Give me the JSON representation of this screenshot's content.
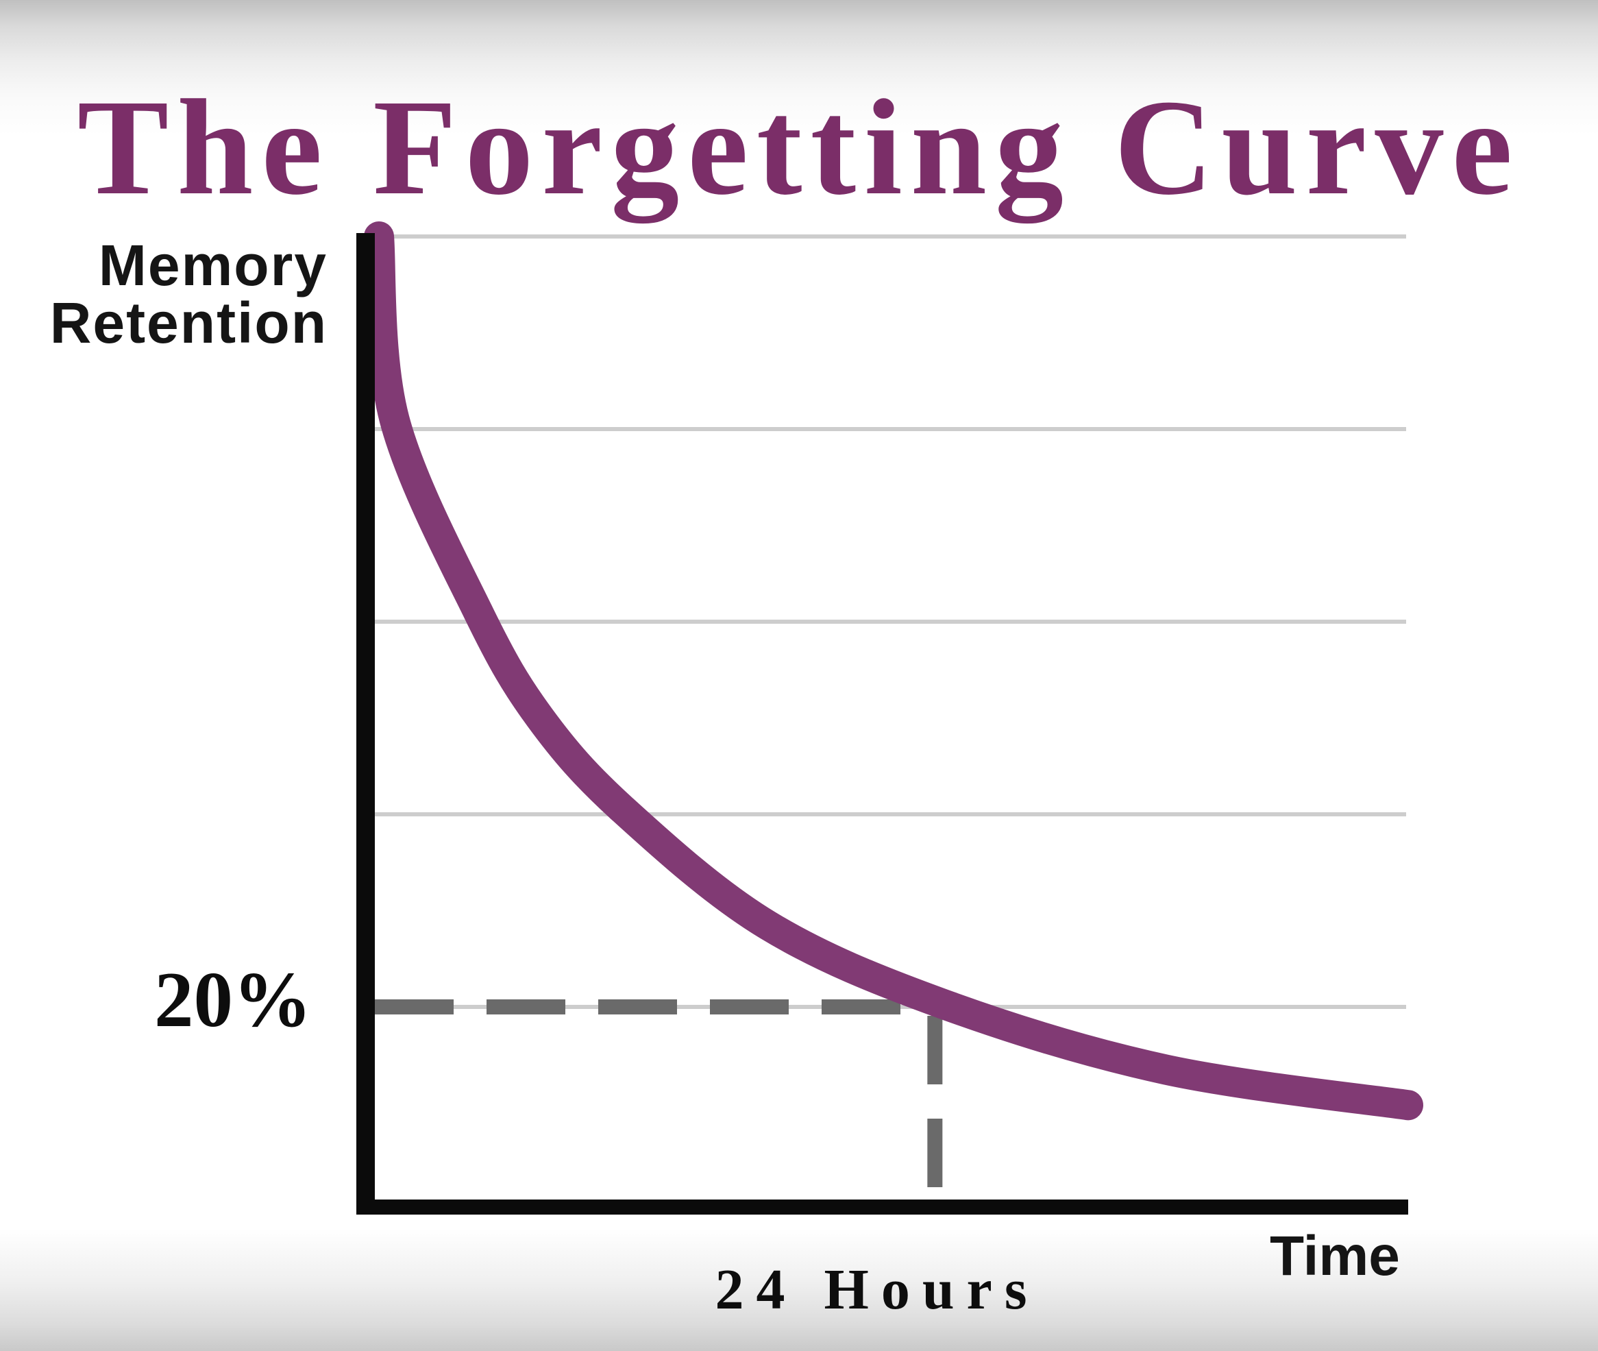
{
  "colors": {
    "title": "#7b2e68",
    "curve": "#813a74",
    "axis": "#0b0b0b",
    "grid": "#cdcdcd",
    "dash": "#6a6a6a",
    "text": "#151515"
  },
  "labels": {
    "y_axis_line1": "Memory",
    "y_axis_line2": "Retention",
    "threshold": "20%",
    "time_marker": "24 Hours",
    "x_axis": "Time"
  },
  "chart_data": {
    "type": "line",
    "title": "The Forgetting Curve",
    "ylabel": "Memory Retention",
    "xlabel": "Time",
    "ylim": [
      0,
      100
    ],
    "grid": "horizontal",
    "gridlines_pct": [
      100,
      80,
      60,
      40,
      20
    ],
    "legend": "none",
    "marked_point": {
      "x_frac": 0.542,
      "retention_pct": 20,
      "time_label": "24 Hours",
      "retention_label": "20%"
    },
    "curve": {
      "name": "memory-retention-over-time",
      "shape": "exponential-decay",
      "points": [
        {
          "x_frac": 0.004,
          "retention_pct": 100
        },
        {
          "x_frac": 0.019,
          "retention_pct": 81
        },
        {
          "x_frac": 0.1,
          "retention_pct": 61
        },
        {
          "x_frac": 0.16,
          "retention_pct": 50
        },
        {
          "x_frac": 0.24,
          "retention_pct": 40.5
        },
        {
          "x_frac": 0.38,
          "retention_pct": 28.5
        },
        {
          "x_frac": 0.55,
          "retention_pct": 20.3
        },
        {
          "x_frac": 0.765,
          "retention_pct": 13.5
        },
        {
          "x_frac": 1.0,
          "retention_pct": 9.8
        }
      ]
    }
  }
}
